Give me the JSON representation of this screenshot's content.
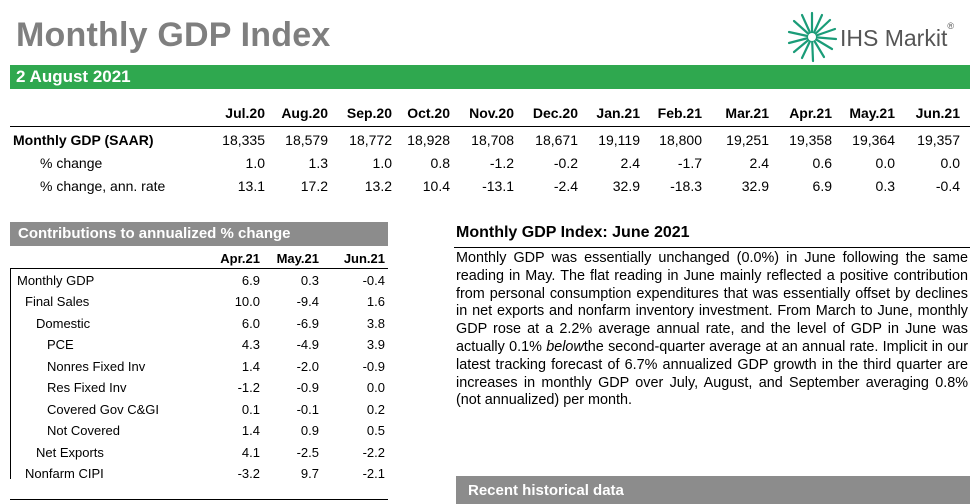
{
  "title": "Monthly GDP Index",
  "logo_text": "IHS Markit",
  "date": "2 August 2021",
  "brand_color": "#2fa84f",
  "top_table": {
    "columns": [
      "Jul.20",
      "Aug.20",
      "Sep.20",
      "Oct.20",
      "Nov.20",
      "Dec.20",
      "Jan.21",
      "Feb.21",
      "Mar.21",
      "Apr.21",
      "May.21",
      "Jun.21"
    ],
    "rows": [
      {
        "label": "Monthly GDP (SAAR)",
        "values": [
          "18,335",
          "18,579",
          "18,772",
          "18,928",
          "18,708",
          "18,671",
          "19,119",
          "18,800",
          "19,251",
          "19,358",
          "19,364",
          "19,357"
        ]
      },
      {
        "label": "% change",
        "values": [
          "1.0",
          "1.3",
          "1.0",
          "0.8",
          "-1.2",
          "-0.2",
          "2.4",
          "-1.7",
          "2.4",
          "0.6",
          "0.0",
          "0.0"
        ]
      },
      {
        "label": "% change, ann. rate",
        "values": [
          "13.1",
          "17.2",
          "13.2",
          "10.4",
          "-13.1",
          "-2.4",
          "32.9",
          "-18.3",
          "32.9",
          "6.9",
          "0.3",
          "-0.4"
        ]
      }
    ]
  },
  "contributions": {
    "header": "Contributions to annualized % change",
    "columns": [
      "Apr.21",
      "May.21",
      "Jun.21"
    ],
    "rows": [
      {
        "label": "Monthly GDP",
        "values": [
          "6.9",
          "0.3",
          "-0.4"
        ]
      },
      {
        "label": "Final Sales",
        "values": [
          "10.0",
          "-9.4",
          "1.6"
        ]
      },
      {
        "label": "Domestic",
        "values": [
          "6.0",
          "-6.9",
          "3.8"
        ]
      },
      {
        "label": "PCE",
        "values": [
          "4.3",
          "-4.9",
          "3.9"
        ]
      },
      {
        "label": "Nonres Fixed Inv",
        "values": [
          "1.4",
          "-2.0",
          "-0.9"
        ]
      },
      {
        "label": "Res Fixed Inv",
        "values": [
          "-1.2",
          "-0.9",
          "0.0"
        ]
      },
      {
        "label": "Covered Gov C&GI",
        "values": [
          "0.1",
          "-0.1",
          "0.2"
        ]
      },
      {
        "label": "Not Covered",
        "values": [
          "1.4",
          "0.9",
          "0.5"
        ]
      },
      {
        "label": "Net Exports",
        "values": [
          "4.1",
          "-2.5",
          "-2.2"
        ]
      },
      {
        "label": "Nonfarm CIPI",
        "values": [
          "-3.2",
          "9.7",
          "-2.1"
        ]
      }
    ]
  },
  "summary": {
    "heading": "Monthly GDP Index: June 2021",
    "text_before": "Monthly GDP was essentially unchanged (0.0%) in June following the same reading in May. The flat reading in June mainly reflected a positive contribution from personal consumption expenditures that was essentially offset by declines in net exports and nonfarm inventory investment. From March to June, monthly GDP rose at a 2.2% average annual rate, and the level of GDP in June was actually 0.1% ",
    "text_em": "below",
    "text_after": "the second-quarter average at an annual rate. Implicit in our latest tracking forecast of 6.7% annualized GDP growth in the third quarter are increases in monthly GDP over July, August, and September averaging  0.8% (not annualized) per month."
  },
  "recent_header": "Recent historical data"
}
